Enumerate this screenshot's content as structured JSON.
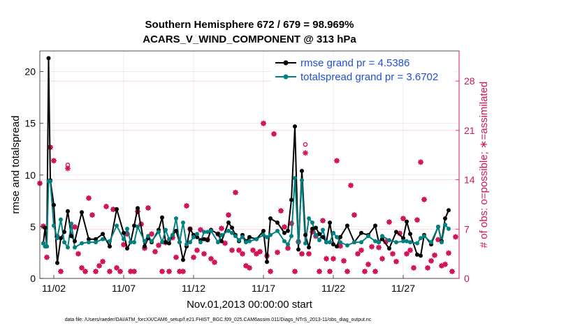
{
  "chart_data": {
    "type": "line",
    "title": "Southern Hemisphere 672 / 679 = 98.969%",
    "subtitle": "ACARS_V_WIND_COMPONENT @ 313 hPa",
    "xlabel": "Nov.01,2013 00:00:00 start",
    "ylabel": "rmse and totalspread",
    "y2label": "# of obs: o=possible; ∗=assimilated",
    "footnote": "data file: /Users/raeder/DAI/ATM_forcXX/CAM6_setup/f.e21.FHIST_BGC.f09_025.CAM6assim.011/Diags_NTrS_2013-11/obs_diag_output.nc",
    "xlim": [
      1,
      31
    ],
    "ylim": [
      0,
      22
    ],
    "y2lim": [
      0,
      32.27
    ],
    "xticks": [
      2,
      7,
      12,
      17,
      22,
      27
    ],
    "xtick_labels": [
      "11/02",
      "11/07",
      "11/12",
      "11/17",
      "11/22",
      "11/27"
    ],
    "yticks": [
      0,
      5,
      10,
      15,
      20
    ],
    "y2ticks": [
      0,
      7,
      14,
      21,
      28
    ],
    "grid": true,
    "legend_position": "top-right",
    "x": [
      1.25,
      1.375,
      1.5,
      1.625,
      1.75,
      2.0,
      2.25,
      2.5,
      2.75,
      3.0,
      3.25,
      3.5,
      4.0,
      4.5,
      5.0,
      5.5,
      6.0,
      6.5,
      7.0,
      7.25,
      7.5,
      7.75,
      8.0,
      8.5,
      8.75,
      9.0,
      9.5,
      9.75,
      10.0,
      10.25,
      10.5,
      10.75,
      11.0,
      11.25,
      11.5,
      11.75,
      12.0,
      12.25,
      12.5,
      12.75,
      13.0,
      13.25,
      13.75,
      14.0,
      14.5,
      14.75,
      15.0,
      15.25,
      15.5,
      15.75,
      16.0,
      16.5,
      17.0,
      17.25,
      17.5,
      18.0,
      18.5,
      18.75,
      19.0,
      19.25,
      19.5,
      19.75,
      20.0,
      20.25,
      20.5,
      20.75,
      21.0,
      21.25,
      21.5,
      21.75,
      22.0,
      22.25,
      22.5,
      23.0,
      23.5,
      24.0,
      24.5,
      25.0,
      25.25,
      25.5,
      26.0,
      26.5,
      27.0,
      27.25,
      27.5,
      28.0,
      28.25,
      28.5,
      29.0,
      29.5,
      29.75,
      30.0,
      30.25
    ],
    "series": [
      {
        "name": "rmse grand pr = 4.5386",
        "color": "#000000",
        "values": [
          3.4,
          4.9,
          3.1,
          21.3,
          9.5,
          7.1,
          1.5,
          3.9,
          4.5,
          6.5,
          4.1,
          3.6,
          6.4,
          3.8,
          3.8,
          4.3,
          3.1,
          6.7,
          4.4,
          2.9,
          3.5,
          5.1,
          6.8,
          3.1,
          3.9,
          3.5,
          4.7,
          5.9,
          3.5,
          3.4,
          4.2,
          4.6,
          3.5,
          1.8,
          3.1,
          4.8,
          4.2,
          4.0,
          3.7,
          3.8,
          3.7,
          4.7,
          4.3,
          3.6,
          5.4,
          4.9,
          4.2,
          3.6,
          4.2,
          3.6,
          4.0,
          3.8,
          4.6,
          1.6,
          5.8,
          5.4,
          4.4,
          4.6,
          7.6,
          14.7,
          2.8,
          10.4,
          4.2,
          3.0,
          4.8,
          4.9,
          4.3,
          4.0,
          3.5,
          5.4,
          3.3,
          3.1,
          4.0,
          5.1,
          3.5,
          4.4,
          4.2,
          5.1,
          3.5,
          3.8,
          2.9,
          4.5,
          3.9,
          5.5,
          4.3,
          2.3,
          2.2,
          4.2,
          3.3,
          5.0,
          3.6,
          5.8,
          6.6
        ]
      },
      {
        "name": "totalspread grand pr = 3.6702",
        "color": "#008080",
        "values": [
          3.4,
          3.1,
          3.1,
          9.4,
          9.4,
          5.1,
          3.9,
          5.7,
          3.5,
          3.0,
          5.3,
          3.0,
          3.4,
          3.5,
          3.5,
          3.8,
          3.6,
          5.1,
          3.8,
          4.8,
          3.5,
          3.5,
          5.0,
          3.6,
          4.1,
          3.6,
          4.5,
          3.5,
          4.7,
          3.8,
          4.2,
          5.8,
          3.5,
          5.4,
          3.3,
          3.5,
          4.0,
          4.3,
          3.5,
          4.5,
          4.5,
          4.6,
          3.5,
          4.2,
          4.6,
          4.4,
          4.1,
          3.7,
          4.0,
          3.5,
          3.6,
          3.8,
          4.2,
          4.0,
          4.2,
          4.6,
          3.6,
          3.3,
          4.1,
          9.7,
          3.5,
          9.5,
          3.4,
          5.8,
          5.4,
          4.2,
          3.7,
          4.7,
          3.5,
          3.5,
          4.4,
          4.0,
          3.5,
          3.2,
          3.5,
          3.5,
          4.1,
          3.6,
          3.5,
          4.1,
          3.7,
          3.5,
          3.6,
          3.6,
          3.5,
          3.4,
          3.9,
          4.1,
          3.5,
          5.0,
          3.5,
          5.2,
          4.8
        ]
      }
    ],
    "obs_x": [
      1.0,
      1.25,
      1.5,
      1.75,
      2.0,
      2.25,
      2.5,
      3.0,
      3.5,
      3.75,
      4.0,
      4.25,
      4.5,
      4.75,
      5.0,
      5.25,
      5.5,
      5.75,
      6.0,
      6.25,
      6.5,
      6.75,
      7.0,
      7.25,
      7.5,
      7.75,
      8.0,
      8.25,
      8.5,
      8.75,
      9.0,
      9.25,
      9.5,
      9.75,
      10.0,
      10.25,
      10.5,
      10.75,
      11.0,
      11.25,
      11.5,
      11.75,
      12.0,
      12.25,
      12.5,
      12.75,
      13.0,
      13.25,
      13.5,
      13.75,
      14.0,
      14.25,
      14.5,
      14.75,
      15.0,
      15.25,
      15.5,
      15.75,
      16.0,
      16.25,
      16.5,
      16.75,
      17.0,
      17.25,
      17.5,
      17.75,
      18.0,
      18.25,
      18.5,
      18.75,
      19.0,
      19.25,
      19.5,
      19.75,
      20.0,
      20.25,
      20.5,
      20.75,
      21.0,
      21.25,
      21.5,
      21.75,
      22.0,
      22.25,
      22.5,
      22.75,
      23.0,
      23.25,
      23.5,
      23.75,
      24.0,
      24.25,
      24.5,
      24.75,
      25.0,
      25.25,
      25.5,
      25.75,
      26.0,
      26.25,
      26.5,
      26.75,
      27.0,
      27.25,
      27.5,
      27.75,
      28.0,
      28.25,
      28.5,
      28.75,
      29.0,
      29.25,
      29.5,
      29.75,
      30.0,
      30.25,
      30.5,
      30.75
    ],
    "obs_possible": [
      13.5,
      7.4,
      3.0,
      18.6,
      16.7,
      5.9,
      1.0,
      16.1,
      7.3,
      3.5,
      1.5,
      1.0,
      11.4,
      9.0,
      1.0,
      1.8,
      2.4,
      10.2,
      1.0,
      9.8,
      1.5,
      1.0,
      4.8,
      6.3,
      1.0,
      1.0,
      9.5,
      7.7,
      4.3,
      10.0,
      6.3,
      3.8,
      4.7,
      1.0,
      5.1,
      1.0,
      5.8,
      3.0,
      1.0,
      1.0,
      10.3,
      7.0,
      3.0,
      4.0,
      6.9,
      3.5,
      5.5,
      2.8,
      2.3,
      6.3,
      7.1,
      5.0,
      9.0,
      4.0,
      12.2,
      4.0,
      3.5,
      1.8,
      1.5,
      4.0,
      3.5,
      3.8,
      22.0,
      3.2,
      1.0,
      20.5,
      3.7,
      9.6,
      7.3,
      4.3,
      7.8,
      1.0,
      5.2,
      3.5,
      19.0,
      3.5,
      6.6,
      6.0,
      1.0,
      8.2,
      2.8,
      1.0,
      2.8,
      16.7,
      4.6,
      2.5,
      1.0,
      13.2,
      9.0,
      3.5,
      4.0,
      1.0,
      2.0,
      4.5,
      1.0,
      4.4,
      2.8,
      5.2,
      8.0,
      3.5,
      2.4,
      6.4,
      8.5,
      3.5,
      4.0,
      1.5,
      8.3,
      16.5,
      11.2,
      1.5,
      2.5,
      3.3,
      5.5,
      1.8,
      2.0,
      3.6,
      1.0,
      5.9,
      9.5,
      1.8,
      1.0,
      1.0
    ],
    "obs_assimilated": [
      13.5,
      7.4,
      3.0,
      18.6,
      16.7,
      5.9,
      1.0,
      15.6,
      7.3,
      3.5,
      1.5,
      1.0,
      11.4,
      9.0,
      1.0,
      1.8,
      2.4,
      10.2,
      1.0,
      9.8,
      1.5,
      1.0,
      4.8,
      6.3,
      1.0,
      1.0,
      9.5,
      7.7,
      4.3,
      10.0,
      6.3,
      3.8,
      4.7,
      1.0,
      5.1,
      1.0,
      5.8,
      3.0,
      1.0,
      1.0,
      10.3,
      7.0,
      3.0,
      4.0,
      6.9,
      3.5,
      5.5,
      2.8,
      2.3,
      6.3,
      7.1,
      5.0,
      9.0,
      4.0,
      12.2,
      4.0,
      3.5,
      1.8,
      1.5,
      4.0,
      3.5,
      3.8,
      22.0,
      3.2,
      1.0,
      20.5,
      3.7,
      9.6,
      7.3,
      4.3,
      7.8,
      1.0,
      5.2,
      3.5,
      17.8,
      3.5,
      6.6,
      6.0,
      1.0,
      8.2,
      2.8,
      1.0,
      2.8,
      16.7,
      4.6,
      2.5,
      1.0,
      13.2,
      9.0,
      3.5,
      4.0,
      1.0,
      2.0,
      4.5,
      1.0,
      4.4,
      2.8,
      5.2,
      8.0,
      3.5,
      2.4,
      6.4,
      8.5,
      3.5,
      4.0,
      1.5,
      8.3,
      16.5,
      11.2,
      1.5,
      2.5,
      3.3,
      5.5,
      1.8,
      2.0,
      3.6,
      1.0,
      5.9,
      9.5,
      1.8,
      1.0,
      1.0
    ]
  }
}
